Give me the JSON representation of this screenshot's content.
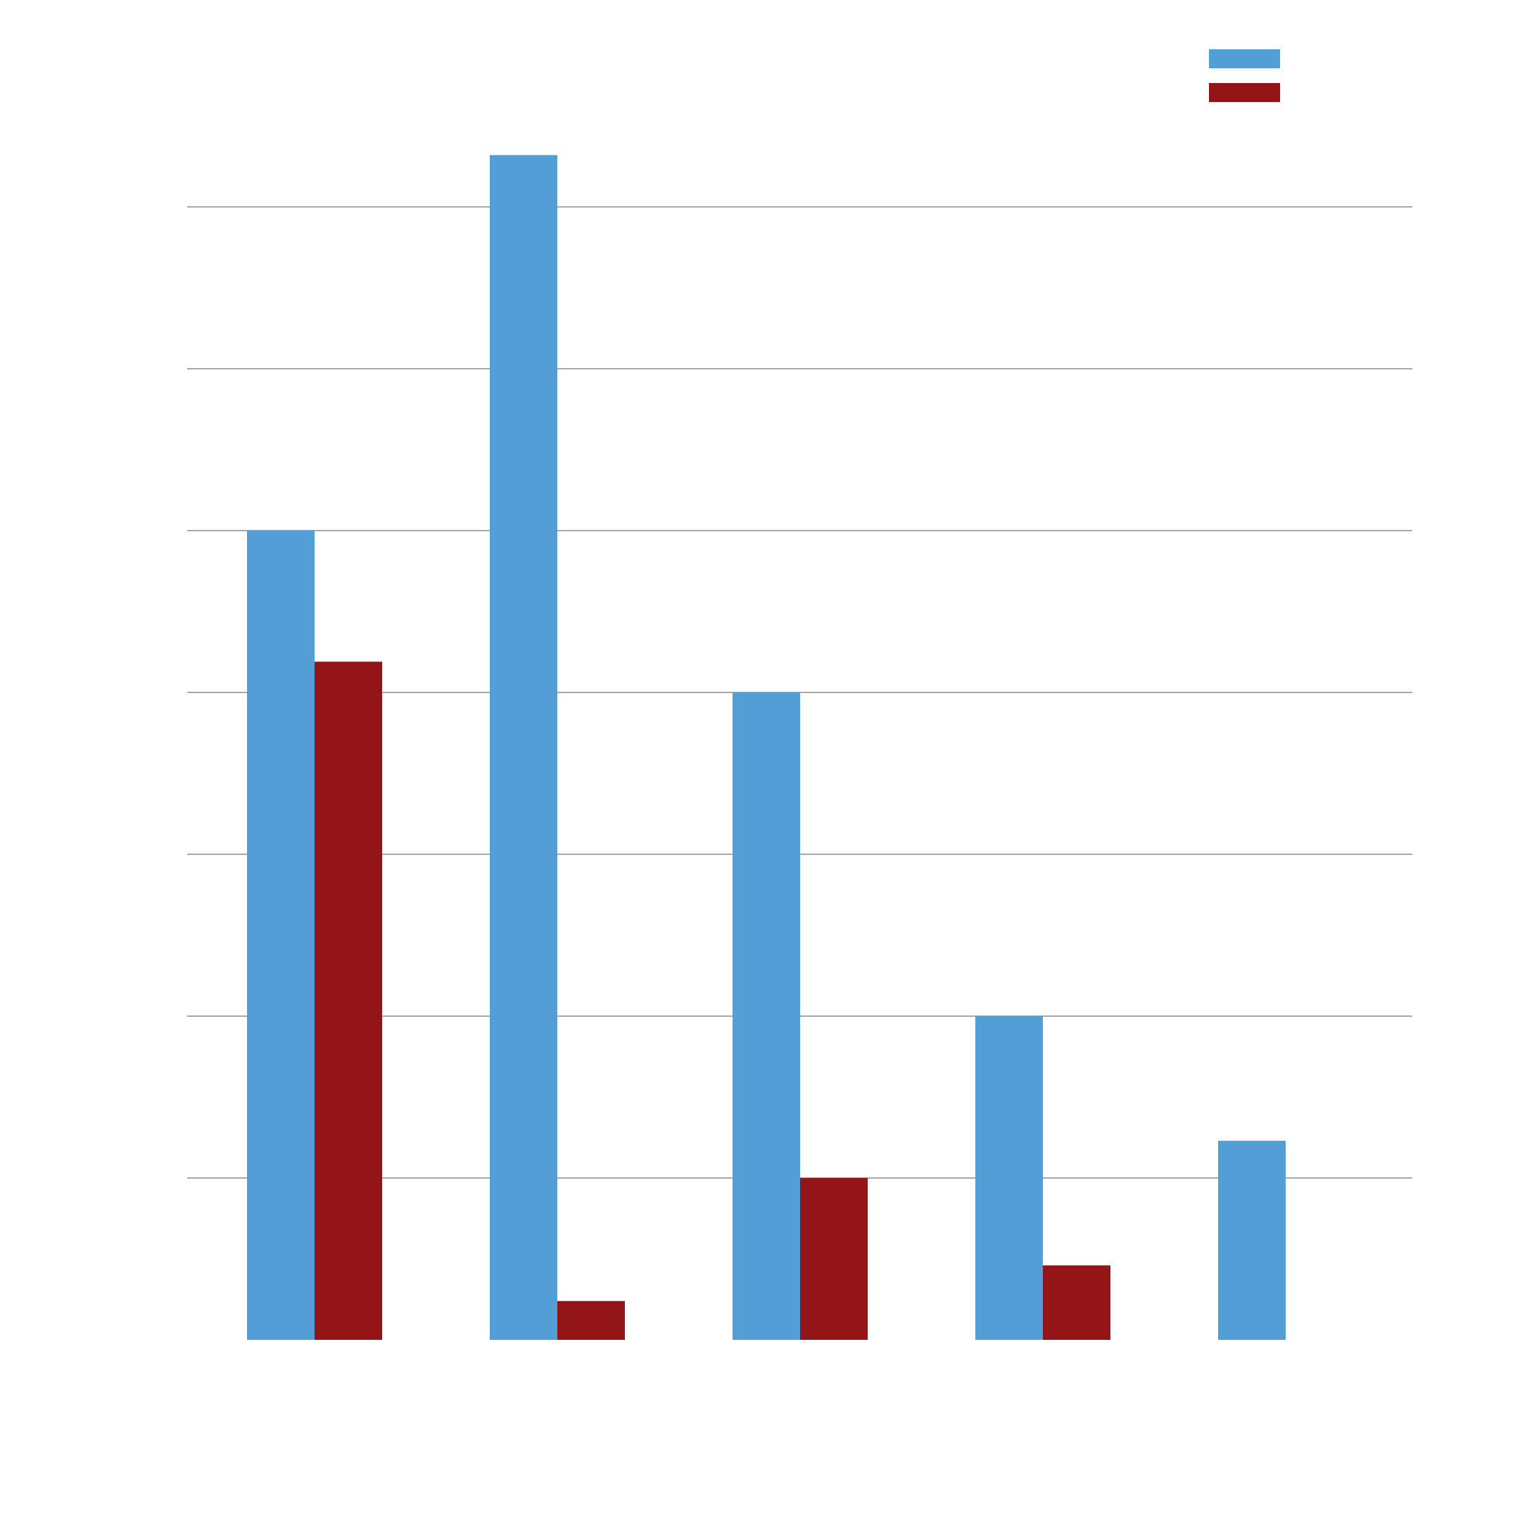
{
  "chart_data": {
    "type": "bar",
    "title": "",
    "xlabel": "",
    "ylabel": "",
    "categories": [
      "",
      "",
      "",
      "",
      ""
    ],
    "series": [
      {
        "color": "#519fd6",
        "values": [
          5.0,
          7.32,
          4.0,
          2.0,
          1.23
        ]
      },
      {
        "color": "#931517",
        "values": [
          4.19,
          0.24,
          1.0,
          0.46,
          0.0
        ]
      }
    ],
    "ylim": [
      0,
      7
    ],
    "y_gridlines": [
      1,
      2,
      3,
      4,
      5,
      6,
      7
    ],
    "grid": true,
    "legend": "top-right"
  }
}
